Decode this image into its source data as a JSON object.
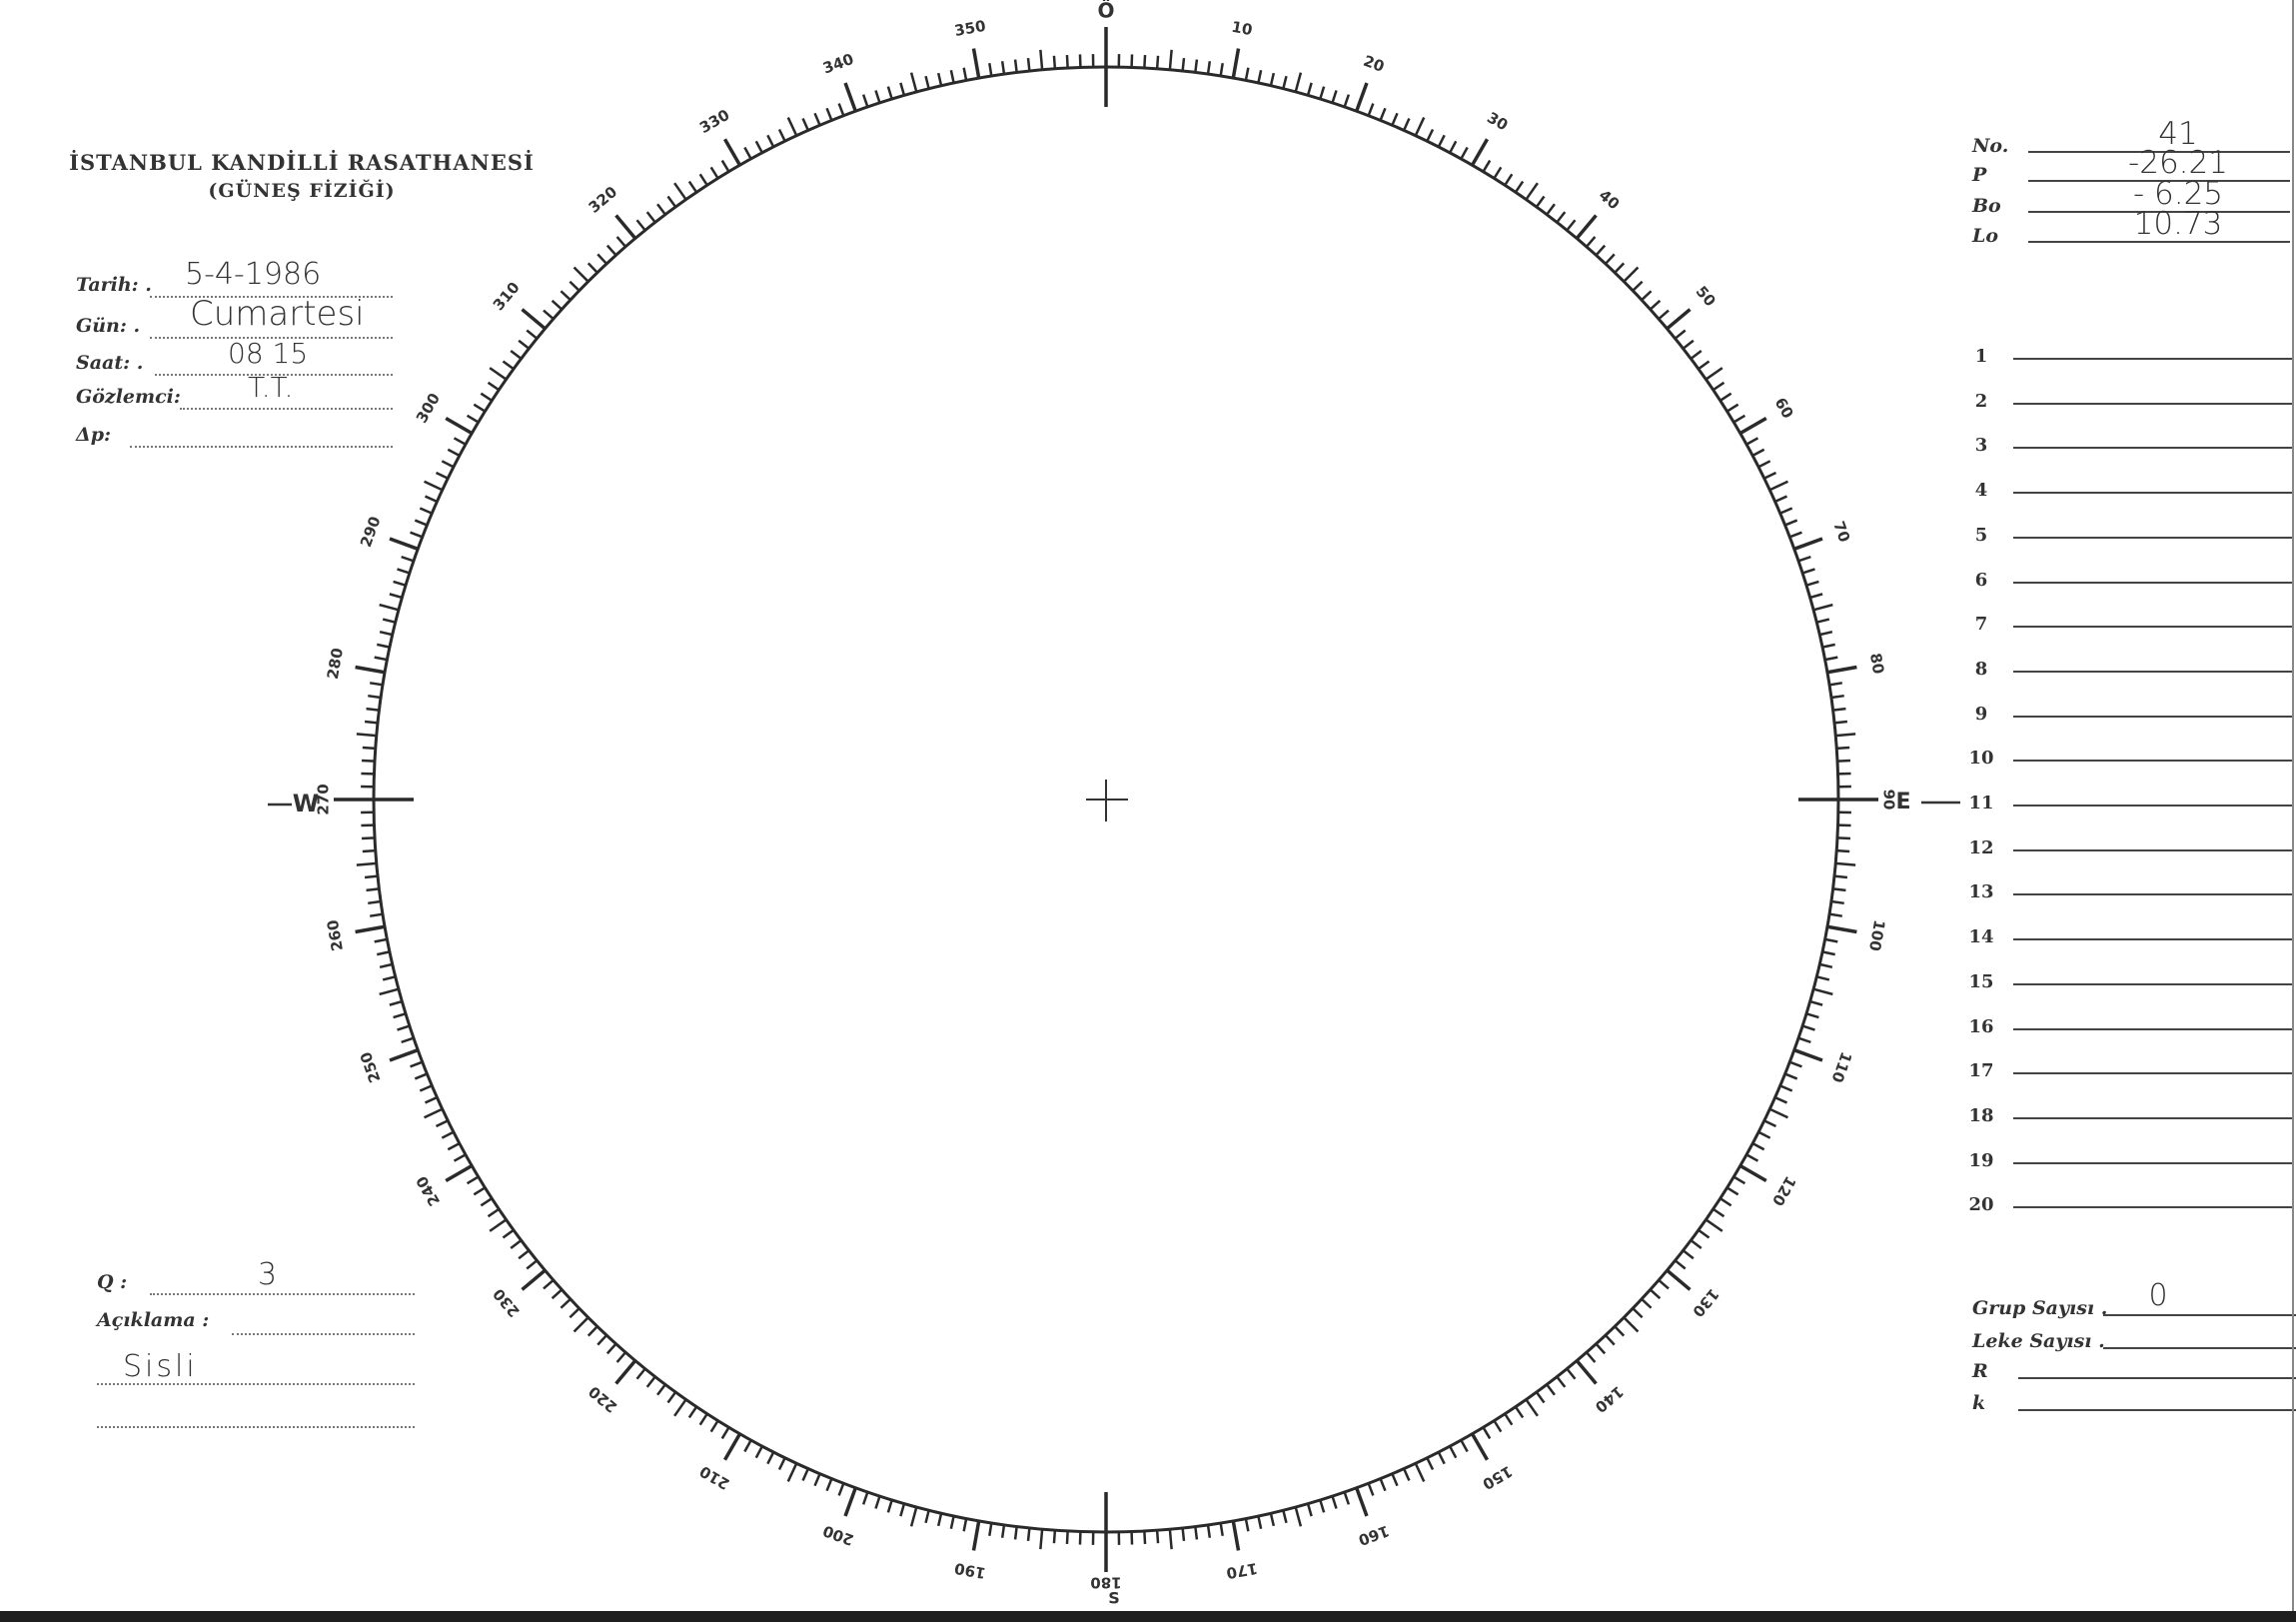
{
  "header": {
    "title": "İSTANBUL KANDİLLİ RASATHANESİ",
    "subtitle": "(GÜNEŞ FİZİĞİ)"
  },
  "left_fields": [
    {
      "label": "Tarih: .",
      "value": "5-4-1986"
    },
    {
      "label": "Gün: .",
      "value": "Cumartesi"
    },
    {
      "label": "Saat: .",
      "value": "08 15"
    },
    {
      "label": "Gözlemci:",
      "value": "T.T."
    },
    {
      "label": "Δp:",
      "value": ""
    }
  ],
  "bottom_left": {
    "q_label": "Q :",
    "q_value": "3",
    "aciklama_label": "Açıklama :",
    "notes": [
      "Sisli",
      ""
    ]
  },
  "top_right": [
    {
      "label": "No.",
      "value": "41"
    },
    {
      "label": "P",
      "value": "-26.21"
    },
    {
      "label": "Bo",
      "value": "- 6.25"
    },
    {
      "label": "Lo",
      "value": "10.73"
    }
  ],
  "numbered_lines": [
    "1",
    "2",
    "3",
    "4",
    "5",
    "6",
    "7",
    "8",
    "9",
    "10",
    "11",
    "12",
    "13",
    "14",
    "15",
    "16",
    "17",
    "18",
    "19",
    "20"
  ],
  "bottom_right": [
    {
      "label": "Grup Sayısı .",
      "value": "0"
    },
    {
      "label": "Leke Sayısı .",
      "value": ""
    },
    {
      "label": "R",
      "value": ""
    },
    {
      "label": "k",
      "value": ""
    }
  ],
  "dial": {
    "labels": [
      "Ö",
      "10",
      "20",
      "30",
      "40",
      "50",
      "60",
      "70",
      "80",
      "90",
      "100",
      "110",
      "120",
      "130",
      "140",
      "150",
      "160",
      "170",
      "180",
      "190",
      "200",
      "210",
      "220",
      "230",
      "240",
      "250",
      "260",
      "270",
      "280",
      "290",
      "300",
      "310",
      "320",
      "330",
      "340",
      "350"
    ],
    "east": "E",
    "west": "W",
    "south": "S",
    "tick_step_degrees": 1
  }
}
